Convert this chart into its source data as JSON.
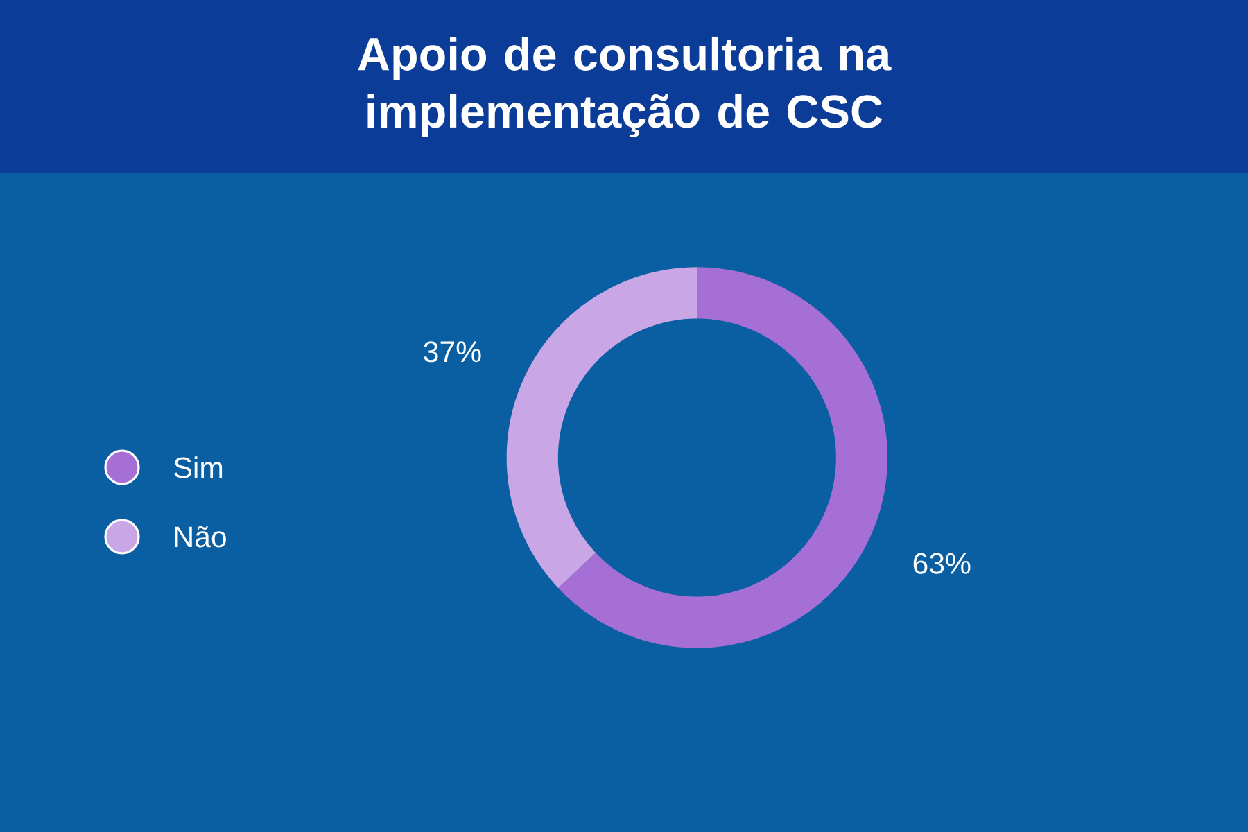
{
  "chart_data": {
    "type": "donut",
    "title": "Apoio de consultoria na implementação de CSC",
    "categories": [
      "Sim",
      "Não"
    ],
    "values": [
      63,
      37
    ],
    "colors": [
      "#a66fd6",
      "#c9a7e6"
    ],
    "value_labels": [
      "63%",
      "37%"
    ],
    "legend": "left"
  }
}
